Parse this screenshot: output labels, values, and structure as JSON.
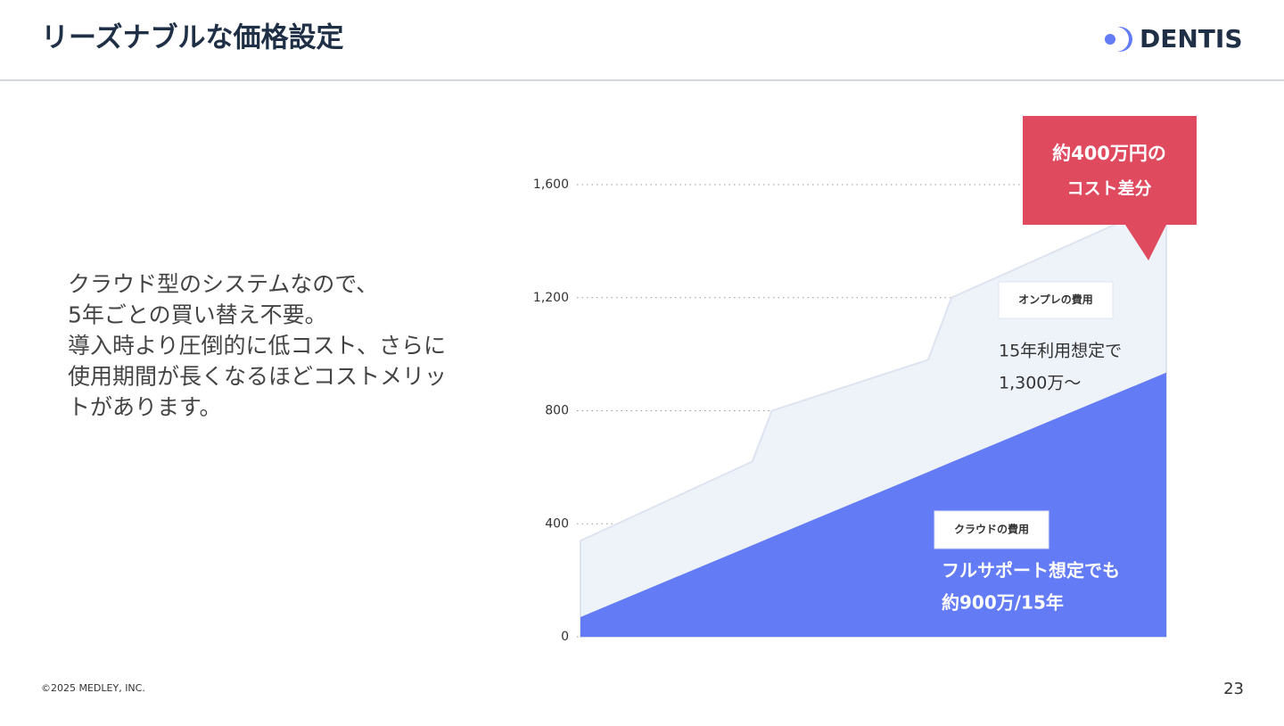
{
  "slide": {
    "title": "リーズナブルな価格設定",
    "logo": "DENTIS",
    "body": [
      "クラウド型のシステムなので、",
      "5年ごとの買い替え不要。",
      "導入時より圧倒的に低コスト、さらに",
      "使用期間が長くなるほどコストメリッ",
      "トがあります。"
    ],
    "footer": "©2025 MEDLEY, INC.",
    "page": "23"
  },
  "chart_data": {
    "type": "area",
    "x": [
      0,
      4.4,
      4.9,
      8.9,
      9.5,
      15
    ],
    "xlim": [
      0,
      15
    ],
    "series": [
      {
        "name": "オンプレの費用",
        "color": "#eef2f9",
        "values": [
          340,
          620,
          800,
          980,
          1200,
          1540
        ]
      },
      {
        "name": "クラウドの費用",
        "color": "#637cf5",
        "values": [
          70,
          324,
          353,
          583,
          618,
          935
        ]
      }
    ],
    "ylim": [
      0,
      1600
    ],
    "yticks": [
      0,
      400,
      800,
      {
        "value": 1200,
        "label": "1,200"
      },
      {
        "value": 1600,
        "label": "1,600"
      }
    ],
    "grid": true,
    "annotations": [
      "15年利用想定で",
      "1,300万〜",
      "フルサポート想定でも",
      "約900万/15年",
      "約400万円の",
      "コスト差分"
    ]
  }
}
